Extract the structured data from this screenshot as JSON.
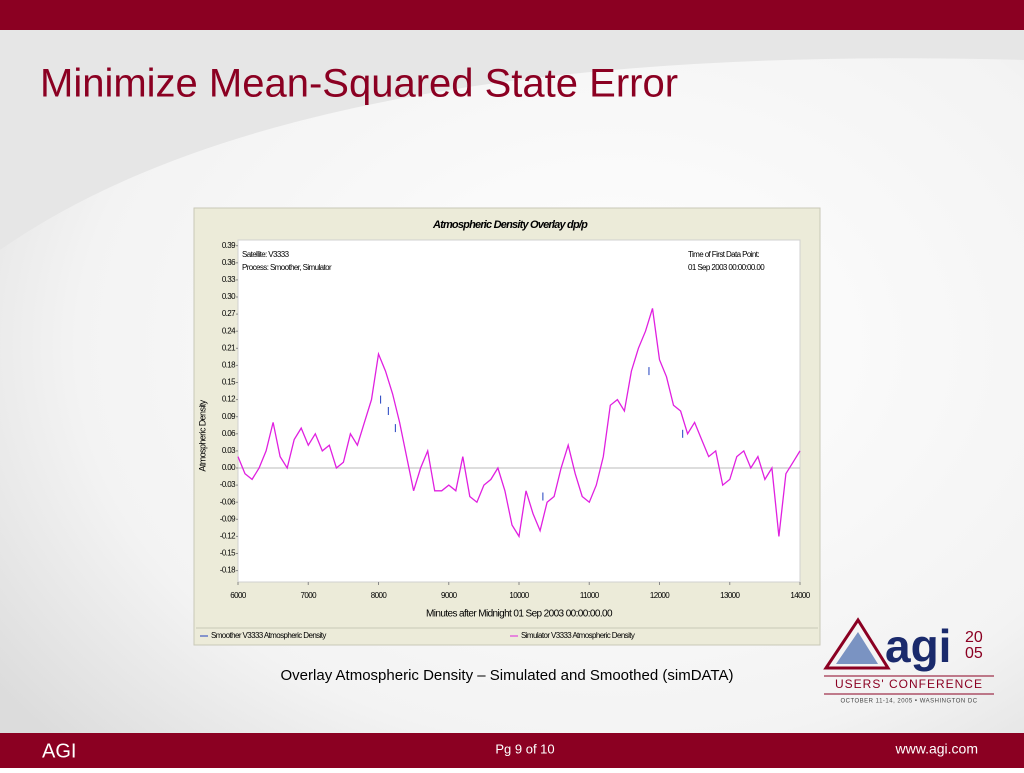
{
  "slide": {
    "title": "Minimize Mean-Squared State Error",
    "caption": "Overlay Atmospheric Density ‒ Simulated and Smoothed (simDATA)",
    "footer": {
      "left": "AGI",
      "center": "Pg 9 of 10",
      "right": "www.agi.com"
    },
    "logo": {
      "word": "agi",
      "year_top": "20",
      "year_bottom": "05",
      "line1": "USERS' CONFERENCE",
      "line2": "OCTOBER 11-14, 2005 • WASHINGTON DC"
    }
  },
  "chart_data": {
    "type": "line",
    "title": "Atmospheric Density Overlay dp/p",
    "xlabel": "Minutes after Midnight 01 Sep 2003  00:00:00.00",
    "ylabel": "Atmospheric Density",
    "annotations": [
      "Satellite: V3333",
      "Process: Smoother, Simulator",
      "Time of First Data Point:",
      "01 Sep 2003 00:00:00.00"
    ],
    "xlim": [
      6000,
      14000
    ],
    "xticks": [
      6000,
      7000,
      8000,
      9000,
      10000,
      11000,
      12000,
      13000,
      14000
    ],
    "ylim": [
      -0.2,
      0.4
    ],
    "yticks": [
      0.39,
      0.36,
      0.33,
      {
        "value": 0.3,
        "label": "0.30"
      },
      0.27,
      0.24,
      0.21,
      0.18,
      0.15,
      0.12,
      0.09,
      0.06,
      0.03,
      {
        "value": 0,
        "label": "0.00"
      },
      -0.03,
      -0.06,
      -0.09,
      -0.12,
      -0.15,
      -0.18
    ],
    "zero_line": true,
    "series": [
      {
        "name": "Smoother V3333 Atmospheric Density",
        "color": "#1f3fbf",
        "x": [
          8030,
          8140,
          8240,
          10340,
          11850,
          12330
        ],
        "values": [
          0.12,
          0.1,
          0.07,
          -0.05,
          0.17,
          0.06
        ]
      },
      {
        "name": "Simulator V3333 Atmospheric Density",
        "color": "#e020e0",
        "x": [
          6000,
          6100,
          6200,
          6300,
          6400,
          6500,
          6600,
          6700,
          6800,
          6900,
          7000,
          7100,
          7200,
          7300,
          7400,
          7500,
          7600,
          7700,
          7800,
          7900,
          8000,
          8100,
          8200,
          8300,
          8400,
          8500,
          8600,
          8700,
          8800,
          8900,
          9000,
          9100,
          9200,
          9300,
          9400,
          9500,
          9600,
          9700,
          9800,
          9900,
          10000,
          10100,
          10200,
          10300,
          10400,
          10500,
          10600,
          10700,
          10800,
          10900,
          11000,
          11100,
          11200,
          11300,
          11400,
          11500,
          11600,
          11700,
          11800,
          11900,
          12000,
          12100,
          12200,
          12300,
          12400,
          12500,
          12600,
          12700,
          12800,
          12900,
          13000,
          13100,
          13200,
          13300,
          13400,
          13500,
          13600,
          13700,
          13800,
          13900,
          14000
        ],
        "values": [
          0.02,
          -0.01,
          -0.02,
          0.0,
          0.03,
          0.08,
          0.02,
          0.0,
          0.05,
          0.07,
          0.04,
          0.06,
          0.03,
          0.04,
          0.0,
          0.01,
          0.06,
          0.04,
          0.08,
          0.12,
          0.2,
          0.17,
          0.13,
          0.08,
          0.02,
          -0.04,
          0.0,
          0.03,
          -0.04,
          -0.04,
          -0.03,
          -0.04,
          0.02,
          -0.05,
          -0.06,
          -0.03,
          -0.02,
          0.0,
          -0.04,
          -0.1,
          -0.12,
          -0.04,
          -0.08,
          -0.11,
          -0.06,
          -0.05,
          0.0,
          0.04,
          -0.01,
          -0.05,
          -0.06,
          -0.03,
          0.02,
          0.11,
          0.12,
          0.1,
          0.17,
          0.21,
          0.24,
          0.28,
          0.19,
          0.16,
          0.11,
          0.1,
          0.06,
          0.08,
          0.05,
          0.02,
          0.03,
          -0.03,
          -0.02,
          0.02,
          0.03,
          0.0,
          0.02,
          -0.02,
          0.0,
          -0.12,
          -0.01,
          0.01,
          0.03
        ]
      }
    ]
  }
}
